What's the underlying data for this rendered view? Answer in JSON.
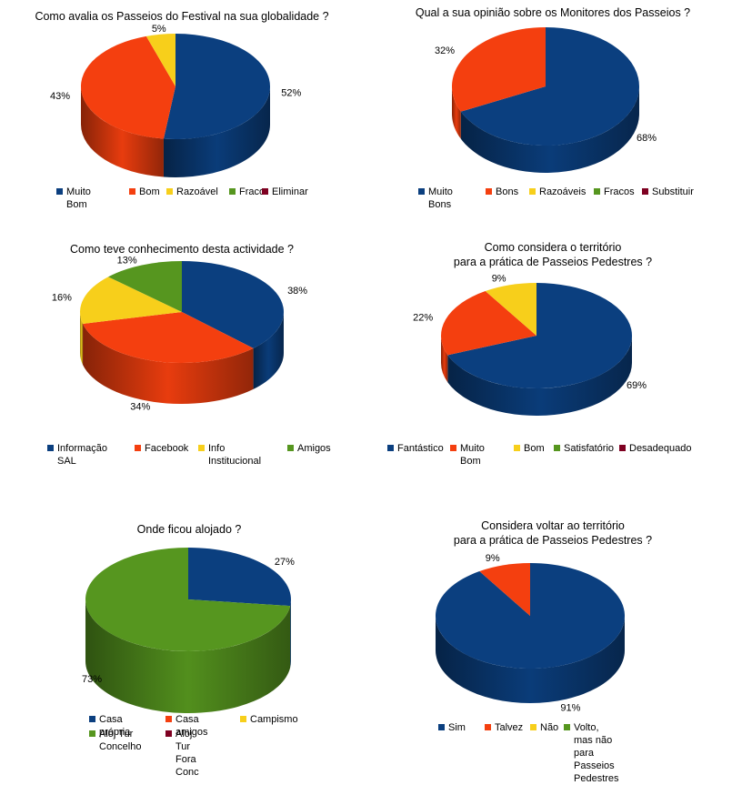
{
  "chart_data": [
    {
      "type": "pie",
      "title": "Como avalia os Passeios do Festival na sua globalidade ?",
      "series": [
        {
          "name": "Muito Bom",
          "value": 52,
          "label": "52%",
          "color": "#0b3f7f"
        },
        {
          "name": "Bom",
          "value": 43,
          "label": "43%",
          "color": "#f43f0f"
        },
        {
          "name": "Razoável",
          "value": 5,
          "label": "5%",
          "color": "#f7cf1b"
        },
        {
          "name": "Fraco",
          "value": 0,
          "label": "",
          "color": "#56961f"
        },
        {
          "name": "Eliminar",
          "value": 0,
          "label": "",
          "color": "#7e0021"
        }
      ]
    },
    {
      "type": "pie",
      "title": "Qual a sua opinião sobre os Monitores dos Passeios ?",
      "series": [
        {
          "name": "Muito Bons",
          "value": 68,
          "label": "68%",
          "color": "#0b3f7f"
        },
        {
          "name": "Bons",
          "value": 32,
          "label": "32%",
          "color": "#f43f0f"
        },
        {
          "name": "Razoáveis",
          "value": 0,
          "label": "",
          "color": "#f7cf1b"
        },
        {
          "name": "Fracos",
          "value": 0,
          "label": "",
          "color": "#56961f"
        },
        {
          "name": "Substituir",
          "value": 0,
          "label": "",
          "color": "#7e0021"
        }
      ]
    },
    {
      "type": "pie",
      "title": "Como teve conhecimento desta actividade ?",
      "series": [
        {
          "name": "Informação SAL",
          "value": 38,
          "label": "38%",
          "color": "#0b3f7f"
        },
        {
          "name": "Facebook",
          "value": 34,
          "label": "34%",
          "color": "#f43f0f"
        },
        {
          "name": "Info Institucional",
          "value": 16,
          "label": "16%",
          "color": "#f7cf1b"
        },
        {
          "name": "Amigos",
          "value": 13,
          "label": "13%",
          "color": "#56961f"
        }
      ]
    },
    {
      "type": "pie",
      "title": "Como considera o território\npara a prática de Passeios Pedestres ?",
      "series": [
        {
          "name": "Fantástico",
          "value": 69,
          "label": "69%",
          "color": "#0b3f7f"
        },
        {
          "name": "Muito Bom",
          "value": 22,
          "label": "22%",
          "color": "#f43f0f"
        },
        {
          "name": "Bom",
          "value": 9,
          "label": "9%",
          "color": "#f7cf1b"
        },
        {
          "name": "Satisfatório",
          "value": 0,
          "label": "",
          "color": "#56961f"
        },
        {
          "name": "Desadequado",
          "value": 0,
          "label": "",
          "color": "#7e0021"
        }
      ]
    },
    {
      "type": "pie",
      "title": "Onde ficou alojado ?",
      "series": [
        {
          "name": "Casa própria",
          "value": 27,
          "label": "27%",
          "color": "#0b3f7f"
        },
        {
          "name": "Casa amigos",
          "value": 0,
          "label": "",
          "color": "#f43f0f"
        },
        {
          "name": "Campismo",
          "value": 0,
          "label": "",
          "color": "#f7cf1b"
        },
        {
          "name": "Aloj Tur\nConcelho",
          "value": 73,
          "label": "73%",
          "color": "#56961f"
        },
        {
          "name": "Aloj Tur Fora\nConc",
          "value": 0,
          "label": "",
          "color": "#7e0021"
        }
      ]
    },
    {
      "type": "pie",
      "title": "Considera voltar ao território\npara a prática de Passeios Pedestres ?",
      "series": [
        {
          "name": "Sim",
          "value": 91,
          "label": "91%",
          "color": "#0b3f7f"
        },
        {
          "name": "Talvez",
          "value": 9,
          "label": "9%",
          "color": "#f43f0f"
        },
        {
          "name": "Não",
          "value": 0,
          "label": "",
          "color": "#f7cf1b"
        },
        {
          "name": "Volto, mas não\npara Passeios\nPedestres",
          "value": 0,
          "label": "",
          "color": "#56961f"
        }
      ]
    }
  ]
}
